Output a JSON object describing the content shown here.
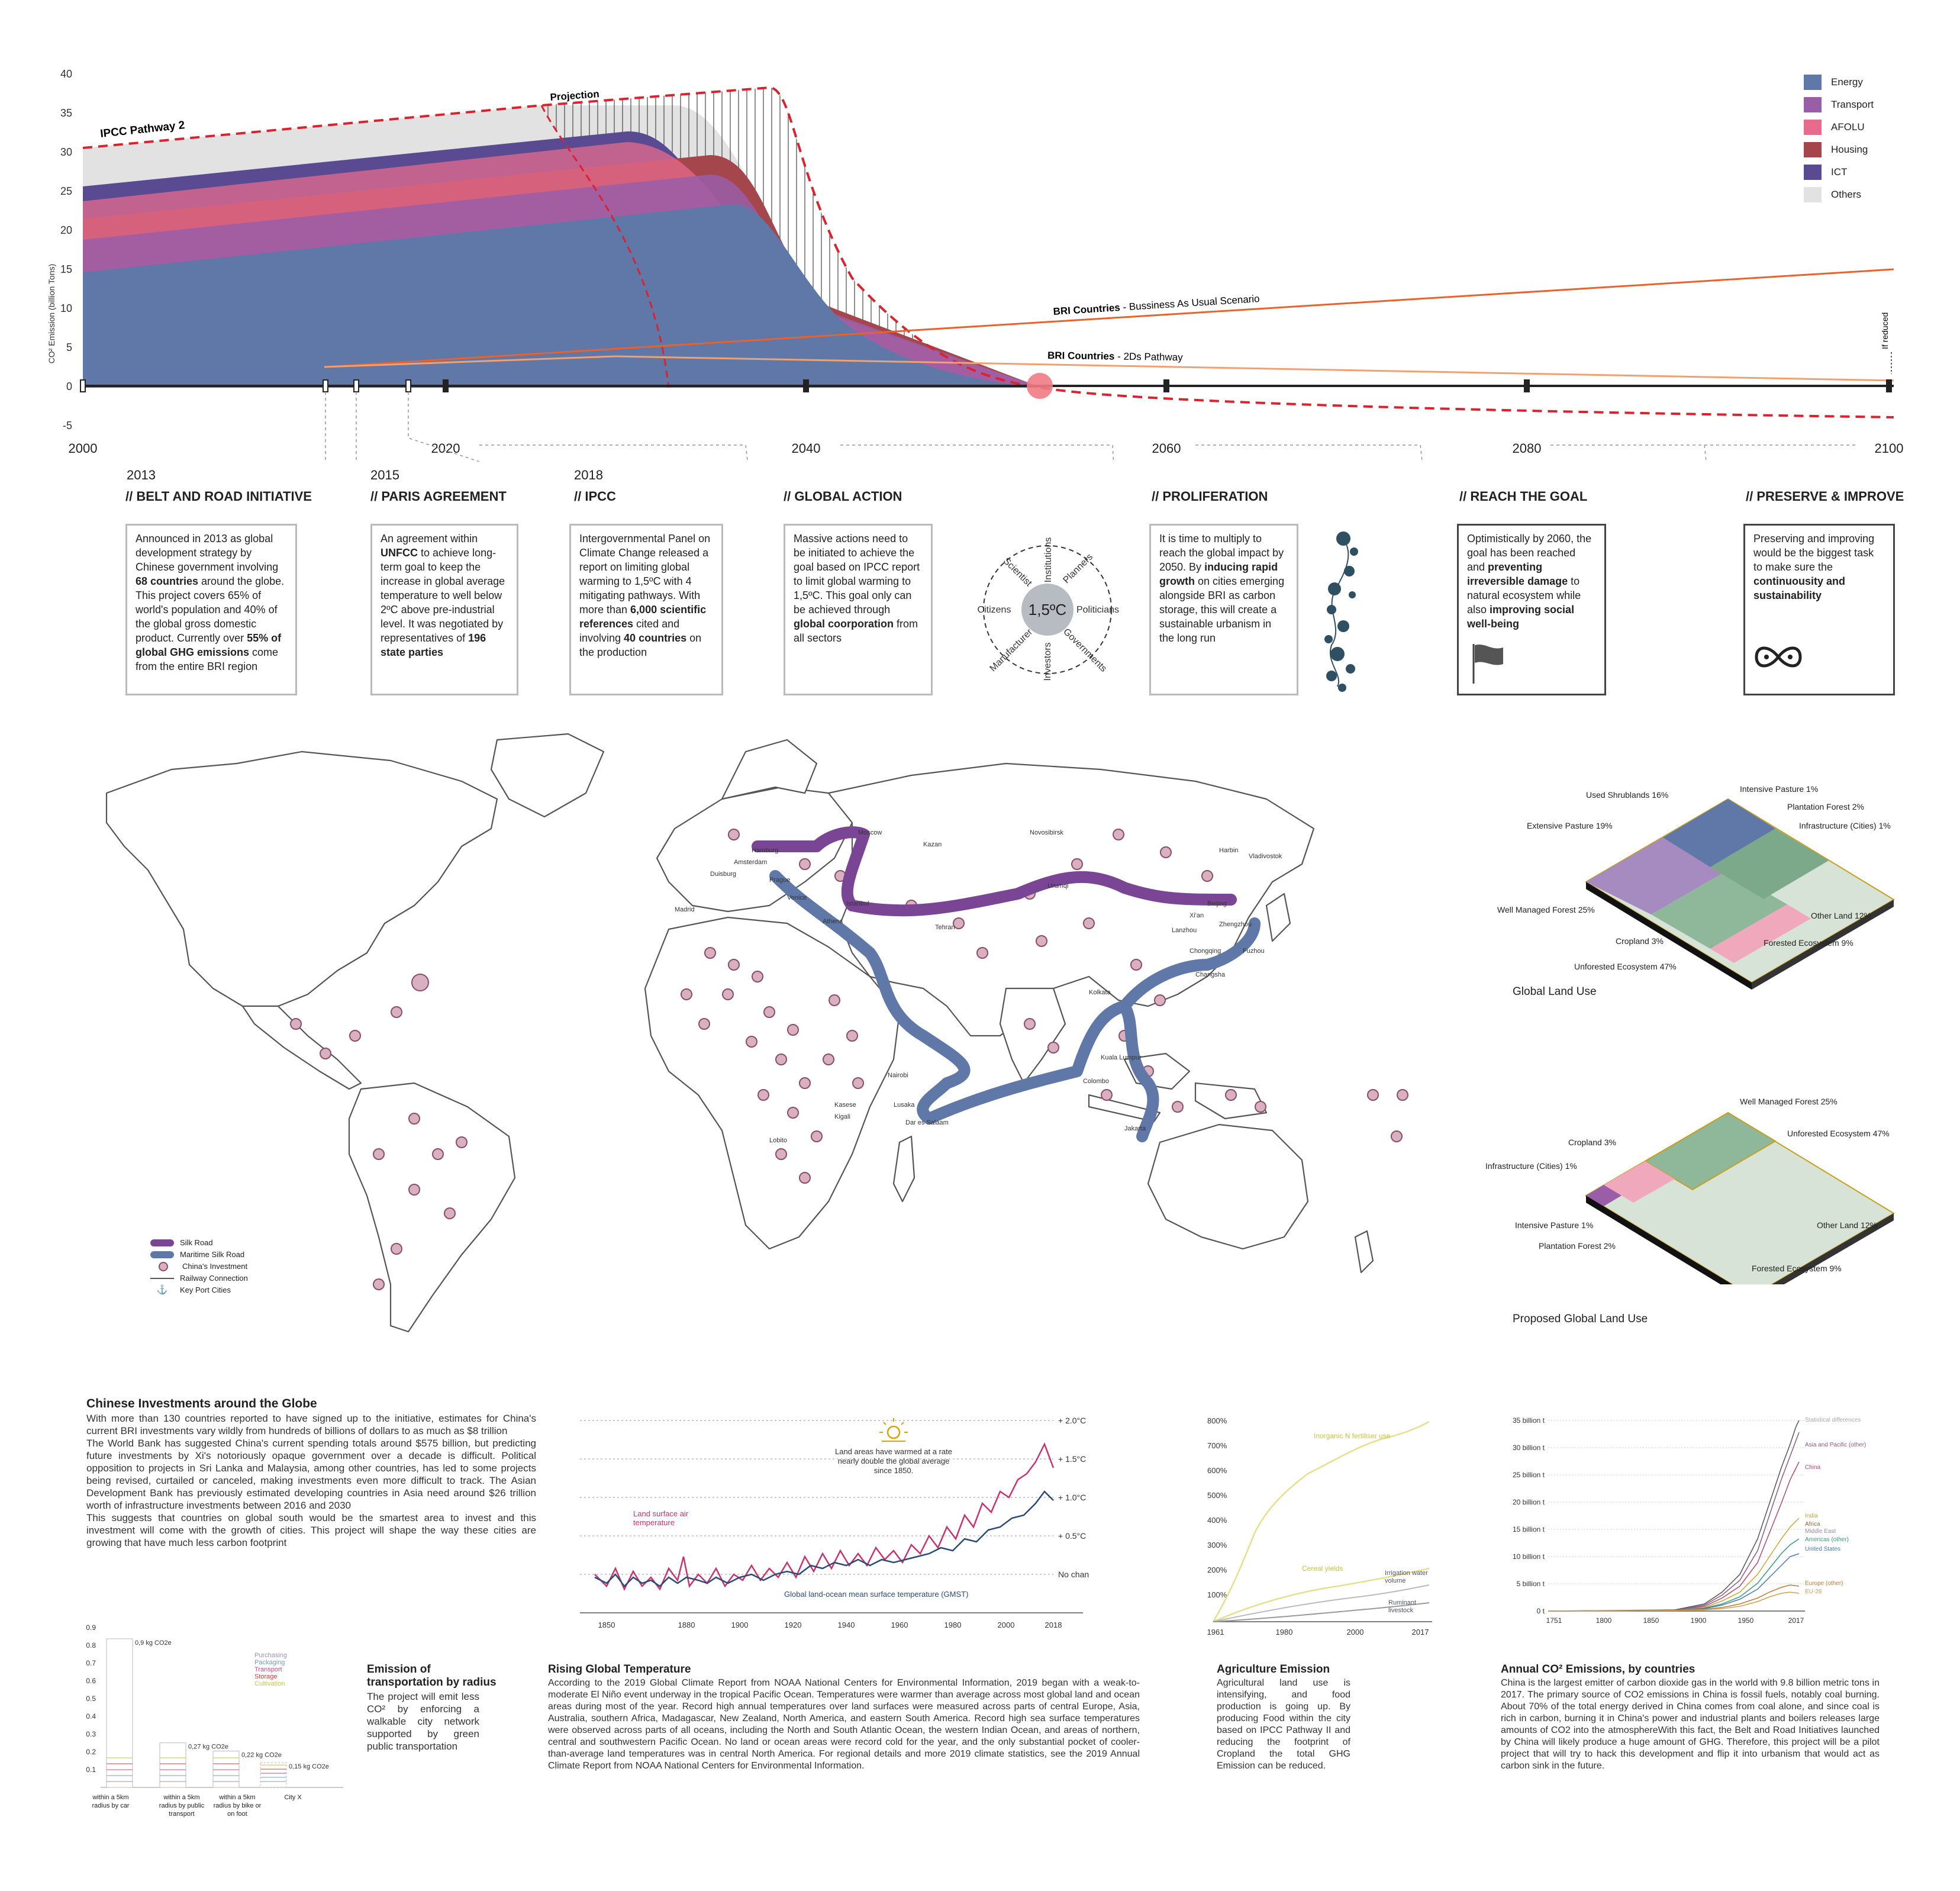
{
  "emission_chart": {
    "ylabel": "CO² Emission (billion Tons)",
    "y_ticks": [
      "40",
      "35",
      "30",
      "25",
      "20",
      "15",
      "10",
      "5",
      "0",
      "-5"
    ],
    "x_ticks": [
      "2000",
      "2020",
      "2040",
      "2060",
      "2080",
      "2100"
    ],
    "labels": {
      "ipcc": "IPCC Pathway 2",
      "projection": "Projection",
      "bau_bold": "BRI Countries",
      "bau_rest": " - Bussiness As Usual Scenario",
      "twod_bold": "BRI Countries",
      "twod_rest": " - 2Ds Pathway",
      "if_reduced": "If reduced"
    },
    "legend": [
      {
        "name": "Energy",
        "color": "#5f78a8"
      },
      {
        "name": "Transport",
        "color": "#9a5ea8"
      },
      {
        "name": "AFOLU",
        "color": "#e66b8d"
      },
      {
        "name": "Housing",
        "color": "#a4464c"
      },
      {
        "name": "ICT",
        "color": "#5a4a91"
      },
      {
        "name": "Others",
        "color": "#e2e2e2"
      }
    ]
  },
  "phases": [
    {
      "year": "2013",
      "title": "// BELT AND ROAD INITIATIVE",
      "html": "Announced in 2013 as global development strategy by Chinese government involving <b>68 countries</b> around the globe. This project covers 65% of world's population and 40% of the global gross domestic product. Currently over <b>55% of global GHG emissions</b> come from the entire BRI region"
    },
    {
      "year": "2015",
      "title": "// PARIS AGREEMENT",
      "html": "An agreement within <b>UNFCC</b> to achieve long-term goal to keep the increase in global average temperature to well below 2ºC above pre-industrial level. It was negotiated by representatives of <b>196 state parties</b>"
    },
    {
      "year": "2018",
      "title": "// IPCC",
      "html": "Intergovernmental Panel on Climate Change released a report on limiting global warming to 1,5ºC with 4 mitigating pathways. With more than <b>6,000 scientific references</b> cited and involving <b>40 countries</b> on the production"
    },
    {
      "year": "",
      "title": "// GLOBAL ACTION",
      "html": "Massive actions need to be initiated to achieve the goal based on IPCC report to limit global warming to 1,5ºC. This goal only can be achieved through <b>global coorporation</b> from all sectors"
    },
    {
      "year": "",
      "title": "// PROLIFERATION",
      "html": "It is time to multiply to reach the global impact by 2050. By <b>inducing rapid growth</b> on cities emerging alongside BRI as carbon storage, this will create a sustainable urbanism in the long run"
    },
    {
      "year": "",
      "title": "// REACH THE GOAL",
      "html": "Optimistically by 2060, the goal has been reached and <b>preventing irreversible damage</b> to natural ecosystem while also <b>improving social well-being</b>"
    },
    {
      "year": "",
      "title": "// PRESERVE & IMPROVE",
      "html": "Preserving and improving would be the biggest task to make sure the <b>continuousity and sustainability</b>"
    }
  ],
  "stakeholders": {
    "center": "1,5ºC",
    "items": [
      "Institutions",
      "Planners",
      "Politicians",
      "Governments",
      "Investors",
      "Manufacturer",
      "Citizens",
      "Scientist"
    ]
  },
  "map": {
    "legend": [
      "Silk Road",
      "Maritime Silk Road",
      "China's Investment",
      "Railway Connection",
      "Key Port Cities"
    ],
    "cities": [
      "Moscow",
      "Kazan",
      "Novosibirsk",
      "Hamburg",
      "Amsterdam",
      "Duisburg",
      "Prague",
      "Madrid",
      "Venice",
      "Athens",
      "Istanbul",
      "Tehran",
      "Urumqi",
      "Harbin",
      "Beijing",
      "Vladivostok",
      "Xi'an",
      "Lanzhou",
      "Zhengzhou",
      "Chongqing",
      "Changsha",
      "Fuzhou",
      "Kolkata",
      "Colombo",
      "Dar es Salaam",
      "Kasese",
      "Kigali",
      "Lobito",
      "Nairobi",
      "Lusaka",
      "Jakarta",
      "Kuala Lumpur"
    ]
  },
  "land_use": {
    "current_title": "Global Land Use",
    "proposed_title": "Proposed Global Land Use",
    "current_labels": [
      "Intensive Pasture 1%",
      "Used Shrublands 16%",
      "Plantation Forest 2%",
      "Extensive Pasture 19%",
      "Infrastructure (Cities)  1%",
      "Well Managed Forest 25%",
      "Other Land 12%",
      "Cropland 3%",
      "Forested Ecosystem 9%",
      "Unforested Ecosystem 47%"
    ],
    "proposed_labels": [
      "Well Managed Forest 25%",
      "Cropland 3%",
      "Unforested Ecosystem 47%",
      "Infrastructure (Cities)  1%",
      "Intensive Pasture 1%",
      "Other Land 12%",
      "Plantation Forest 2%",
      "Forested Ecosystem 9%"
    ]
  },
  "investments": {
    "title": "Chinese Investments around the Globe",
    "text": "With more than 130 countries reported to have signed up to the initiative, estimates for China's current BRI investments vary wildly from hundreds of billions of dollars to as much as $8 trillion\nThe World Bank has suggested China's current spending totals around $575 billion, but predicting future investments by Xi's notoriously opaque government over a decade is difficult. Political opposition to projects in Sri Lanka and Malaysia, among other countries, has led to some projects being revised, curtailed or canceled, making investments even more difficult to track. The Asian Development Bank has previously estimated developing countries in Asia need around $26 trillion worth of infrastructure investments between 2016 and 2030\nThis suggests that countries on global south would be the smartest area to invest and this investment will come with the growth of cities. This project will shape the way these cities are growing that have much less carbon footprint"
  },
  "radius_chart": {
    "title": "Emission of transportation by radius",
    "text": "The project will emit less CO² by enforcing a walkable city network supported by green public transportation",
    "y_ticks": [
      "0.9",
      "0.8",
      "0.7",
      "0.6",
      "0.5",
      "0.4",
      "0.3",
      "0.2",
      "0.1"
    ],
    "legend": [
      {
        "name": "Purchasing",
        "color": "#9a8fc4"
      },
      {
        "name": "Packaging",
        "color": "#6fa0d0"
      },
      {
        "name": "Transport",
        "color": "#c34a8a"
      },
      {
        "name": "Storage",
        "color": "#d23b3b"
      },
      {
        "name": "Cultivation",
        "color": "#c9c24a"
      }
    ],
    "bars": [
      {
        "label": "within a 5km radius by car",
        "value": 0.9,
        "value_label": "0,9 kg CO2e"
      },
      {
        "label": "within a 5km radius by public transport",
        "value": 0.27,
        "value_label": "0,27 kg CO2e"
      },
      {
        "label": "within a 5km radius by bike or on foot",
        "value": 0.22,
        "value_label": "0,22 kg CO2e"
      },
      {
        "label": "City X",
        "value": 0.15,
        "value_label": "0,15 kg CO2e"
      }
    ]
  },
  "temperature": {
    "title": "Rising Global Temperature",
    "text": "According to the 2019 Global Climate Report from NOAA National Centers for Environmental Information, 2019 began with a weak-to-moderate El Niño event underway in the tropical Pacific Ocean. Temperatures were warmer than average across most global land and ocean areas during most of the year. Record high annual temperatures over land surfaces were measured across parts of central Europe, Asia, Australia, southern Africa, Madagascar, New Zealand, North America, and eastern South America. Record high sea surface temperatures were observed across parts of all oceans, including the North and South Atlantic Ocean, the western Indian Ocean, and areas of northern, central and southwestern Pacific Ocean. No land or ocean areas were record cold for the year, and the only substantial pocket of cooler-than-average land temperatures was in central North America. For regional details and more 2019 climate statistics, see the 2019 Annual Climate Report from NOAA National Centers for Environmental Information.",
    "x_ticks": [
      "1850",
      "1880",
      "1900",
      "1920",
      "1940",
      "1960",
      "1980",
      "2000",
      "2018"
    ],
    "y_ticks": [
      "+ 2.0°C",
      "+ 1.5°C",
      "+ 1.0°C",
      "+ 0.5°C",
      "No chan"
    ],
    "annotation": "Land areas have warmed at a rate nearly double the global average since 1850.",
    "land_label": "Land surface air temperature",
    "ocean_label": "Global land-ocean mean surface temperature (GMST)"
  },
  "agriculture": {
    "title": "Agriculture Emission",
    "text": "Agricultural land use is intensifying, and food production is going up. By producing Food within the city based on IPCC Pathway II and reducing the footprint of Cropland the total GHG Emission can be reduced.",
    "y_ticks": [
      "800%",
      "700%",
      "600%",
      "500%",
      "400%",
      "300%",
      "200%",
      "100%"
    ],
    "x_ticks": [
      "1961",
      "1980",
      "2000",
      "2017"
    ],
    "labels": {
      "fert": "Inorganic N fertiliser use",
      "cereal": "Cereal yields",
      "irrigation": "Irrigation water volume",
      "ruminant": "Ruminant livestock"
    }
  },
  "annual": {
    "title": "Annual CO² Emissions, by countries",
    "text": "China is the largest emitter of carbon dioxide gas in the world with 9.8 billion metric tons in 2017. The primary source of CO2 emissions in China is fossil fuels, notably coal burning. About 70% of the total energy derived in China comes from coal alone, and since coal is rich in carbon, burning it in China's power and industrial plants and boilers releases large amounts of CO2 into the atmosphereWith this fact, the Belt and Road Initiatives launched by China will likely produce a huge amount of GHG. Therefore, this project will be a pilot project that will try to hack this development and flip it into urbanism that would act as carbon sink in the future.",
    "y_ticks": [
      "35 billion t",
      "30 billion t",
      "25 billion t",
      "20 billion t",
      "15 billion t",
      "10 billion t",
      "5 billion t",
      "0 t"
    ],
    "x_ticks": [
      "1751",
      "1800",
      "1850",
      "1900",
      "1950",
      "2017"
    ],
    "series_labels": [
      {
        "name": "Statistical differences",
        "color": "#aaa"
      },
      {
        "name": "Asia and Pacific (other)",
        "color": "#8c5a8a"
      },
      {
        "name": "China",
        "color": "#b04a6a"
      },
      {
        "name": "India",
        "color": "#c9a53a"
      },
      {
        "name": "Africa",
        "color": "#8a6a3a"
      },
      {
        "name": "Middle East",
        "color": "#a08aa0"
      },
      {
        "name": "Americas (other)",
        "color": "#3a9a7a"
      },
      {
        "name": "United States",
        "color": "#4a7ab0"
      },
      {
        "name": "Europe (other)",
        "color": "#c07a3a"
      },
      {
        "name": "EU-28",
        "color": "#d0a050"
      }
    ]
  }
}
